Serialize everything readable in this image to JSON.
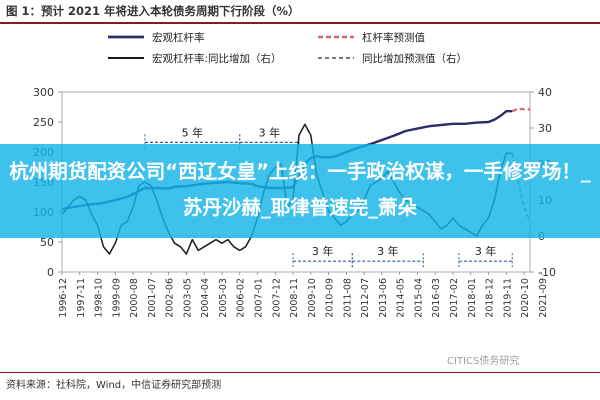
{
  "figure_title": "图 1：预计 2021 年将进入本轮债务周期下行阶段（%）",
  "banner_text": "杭州期货配资公司“西辽女皇”上线：一手政治权谋，一手修罗场！_苏丹沙赫_耶律普速完_萧朵",
  "source_text": "资料来源：社科院，Wind，中信证券研究部预测",
  "watermark_text": "CITICS债务研究",
  "colors": {
    "leverage": "#2b2b6b",
    "yoy": "#1a1a1a",
    "forecast": "#e06070",
    "accent": "#8b1a1a",
    "banner": "#14b4e8"
  },
  "chart_data": {
    "type": "line",
    "legend": [
      "宏观杠杆率",
      "杠杆率预测值",
      "宏观杠杆率:同比增加（右）",
      "同比增加预测值（右）"
    ],
    "legend_placement": "top",
    "x_tick_labels": [
      "1996-12",
      "1997-11",
      "1998-10",
      "1999-09",
      "2000-08",
      "2001-07",
      "2002-06",
      "2003-05",
      "2004-04",
      "2005-03",
      "2006-02",
      "2007-01",
      "2007-12",
      "2008-11",
      "2009-10",
      "2010-09",
      "2011-08",
      "2012-07",
      "2013-06",
      "2014-05",
      "2015-04",
      "2016-03",
      "2017-02",
      "2018-01",
      "2018-12",
      "2019-11",
      "2020-10",
      "2021-09"
    ],
    "y_left": {
      "min": 0,
      "max": 300,
      "ticks": [
        0,
        50,
        100,
        150,
        200,
        250,
        300
      ]
    },
    "y_right": {
      "min": -10,
      "max": 40,
      "ticks": [
        -10,
        0,
        10,
        20,
        30,
        40
      ]
    },
    "series": [
      {
        "name": "宏观杠杆率",
        "axis": "left",
        "values": [
          [
            0,
            105
          ],
          [
            3,
            110
          ],
          [
            5,
            113
          ],
          [
            7,
            115
          ],
          [
            9,
            120
          ],
          [
            11,
            125
          ],
          [
            12,
            130
          ],
          [
            14,
            140
          ],
          [
            16,
            140
          ],
          [
            18,
            139
          ],
          [
            19,
            142
          ],
          [
            21,
            143
          ],
          [
            23,
            146
          ],
          [
            25,
            148
          ],
          [
            28,
            150
          ],
          [
            30,
            148
          ],
          [
            32,
            147
          ],
          [
            33,
            143
          ],
          [
            35,
            140
          ],
          [
            37,
            140
          ],
          [
            39,
            141
          ],
          [
            40,
            160
          ],
          [
            41,
            180
          ],
          [
            42,
            190
          ],
          [
            43,
            193
          ],
          [
            44,
            191
          ],
          [
            46,
            192
          ],
          [
            48,
            200
          ],
          [
            50,
            207
          ],
          [
            52,
            213
          ],
          [
            54,
            220
          ],
          [
            56,
            227
          ],
          [
            58,
            235
          ],
          [
            60,
            239
          ],
          [
            62,
            243
          ],
          [
            64,
            245
          ],
          [
            66,
            247
          ],
          [
            68,
            247
          ],
          [
            70,
            249
          ],
          [
            72,
            250
          ],
          [
            73,
            254
          ],
          [
            74,
            260
          ],
          [
            75,
            268
          ],
          [
            76,
            268
          ]
        ]
      },
      {
        "name": "杠杆率预测值",
        "axis": "left",
        "values": [
          [
            76,
            268
          ],
          [
            77,
            272
          ],
          [
            78,
            271
          ],
          [
            79,
            271
          ]
        ]
      },
      {
        "name": "宏观杠杆率:同比增加（右）",
        "axis": "right",
        "values": [
          [
            0,
            6
          ],
          [
            1,
            8
          ],
          [
            2,
            10
          ],
          [
            3,
            11
          ],
          [
            4,
            10
          ],
          [
            5,
            6
          ],
          [
            6,
            3
          ],
          [
            7,
            -3
          ],
          [
            8,
            -5
          ],
          [
            9,
            -2
          ],
          [
            10,
            3
          ],
          [
            11,
            4
          ],
          [
            12,
            8
          ],
          [
            13,
            14
          ],
          [
            14,
            15
          ],
          [
            15,
            14
          ],
          [
            16,
            10
          ],
          [
            17,
            5
          ],
          [
            18,
            1
          ],
          [
            19,
            -2
          ],
          [
            20,
            -3
          ],
          [
            21,
            -5
          ],
          [
            22,
            -1
          ],
          [
            23,
            -4
          ],
          [
            24,
            -3
          ],
          [
            25,
            -2
          ],
          [
            26,
            -1
          ],
          [
            27,
            -2
          ],
          [
            28,
            -1
          ],
          [
            29,
            -3
          ],
          [
            30,
            -4
          ],
          [
            31,
            -3
          ],
          [
            32,
            0
          ],
          [
            33,
            5
          ],
          [
            34,
            12
          ],
          [
            35,
            17
          ],
          [
            36,
            19
          ],
          [
            37,
            20
          ],
          [
            38,
            8
          ],
          [
            39,
            10
          ],
          [
            40,
            28
          ],
          [
            41,
            31
          ],
          [
            42,
            28
          ],
          [
            43,
            17
          ],
          [
            44,
            12
          ],
          [
            45,
            7
          ],
          [
            46,
            5
          ],
          [
            47,
            3
          ],
          [
            48,
            4
          ],
          [
            49,
            6
          ],
          [
            50,
            7
          ],
          [
            51,
            10
          ],
          [
            52,
            14
          ],
          [
            53,
            15
          ],
          [
            54,
            16
          ],
          [
            55,
            18
          ],
          [
            56,
            15
          ],
          [
            57,
            12
          ],
          [
            58,
            10
          ],
          [
            59,
            9
          ],
          [
            60,
            8
          ],
          [
            61,
            7
          ],
          [
            62,
            6
          ],
          [
            63,
            4
          ],
          [
            64,
            2
          ],
          [
            65,
            3
          ],
          [
            66,
            5
          ],
          [
            67,
            3
          ],
          [
            68,
            2
          ],
          [
            69,
            1
          ],
          [
            70,
            0
          ],
          [
            71,
            3
          ],
          [
            72,
            5
          ],
          [
            73,
            10
          ],
          [
            74,
            18
          ],
          [
            75,
            23
          ],
          [
            76,
            23
          ]
        ]
      },
      {
        "name": "同比增加预测值（右）",
        "axis": "right",
        "values": [
          [
            76,
            23
          ],
          [
            77,
            15
          ],
          [
            78,
            8
          ],
          [
            79,
            4
          ]
        ]
      }
    ],
    "annotations": [
      {
        "text": "5 年",
        "x_from": 14,
        "x_to": 30
      },
      {
        "text": "3 年",
        "x_from": 30,
        "x_to": 40
      },
      {
        "text": "3 年",
        "x_from": 39,
        "x_to": 49
      },
      {
        "text": "3 年",
        "x_from": 49,
        "x_to": 61
      },
      {
        "text": "3 年",
        "x_from": 67,
        "x_to": 76
      }
    ]
  }
}
